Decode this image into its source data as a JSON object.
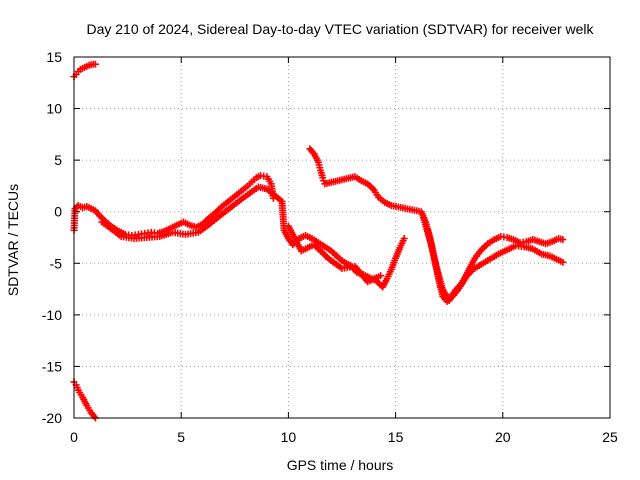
{
  "chart_data": {
    "type": "scatter",
    "title": "Day 210 of 2024, Sidereal Day-to-day VTEC variation (SDTVAR) for receiver welk",
    "xlabel": "GPS time / hours",
    "ylabel": "SDTVAR / TECUs",
    "xlim": [
      0,
      25
    ],
    "ylim": [
      -20,
      15
    ],
    "xticks": [
      0,
      5,
      10,
      15,
      20,
      25
    ],
    "yticks": [
      15,
      10,
      5,
      0,
      -5,
      -10,
      -15,
      -20
    ],
    "grid": true,
    "marker": "+",
    "color": "#ff0000",
    "series": [
      {
        "name": "sdtvar",
        "points": [
          [
            0.0,
            13.1
          ],
          [
            0.1,
            13.3
          ],
          [
            0.2,
            13.6
          ],
          [
            0.3,
            13.8
          ],
          [
            0.5,
            14.0
          ],
          [
            0.7,
            14.2
          ],
          [
            0.9,
            14.3
          ],
          [
            1.0,
            14.3
          ],
          [
            0.0,
            -16.5
          ],
          [
            0.1,
            -16.8
          ],
          [
            0.2,
            -17.3
          ],
          [
            0.4,
            -18.0
          ],
          [
            0.6,
            -18.8
          ],
          [
            0.8,
            -19.5
          ],
          [
            1.0,
            -20.0
          ],
          [
            0.0,
            -1.8
          ],
          [
            0.05,
            0.3
          ],
          [
            0.2,
            0.6
          ],
          [
            0.4,
            0.4
          ],
          [
            0.6,
            0.5
          ],
          [
            0.8,
            0.3
          ],
          [
            1.0,
            0.1
          ],
          [
            1.2,
            -0.4
          ],
          [
            1.5,
            -1.0
          ],
          [
            1.8,
            -1.5
          ],
          [
            2.1,
            -1.9
          ],
          [
            2.4,
            -2.2
          ],
          [
            2.7,
            -2.3
          ],
          [
            3.0,
            -2.2
          ],
          [
            3.3,
            -2.1
          ],
          [
            3.6,
            -2.0
          ],
          [
            3.9,
            -2.1
          ],
          [
            4.2,
            -1.9
          ],
          [
            4.5,
            -1.6
          ],
          [
            4.8,
            -1.3
          ],
          [
            5.1,
            -1.0
          ],
          [
            5.4,
            -1.3
          ],
          [
            5.7,
            -1.5
          ],
          [
            6.0,
            -1.2
          ],
          [
            6.3,
            -0.6
          ],
          [
            6.6,
            -0.1
          ],
          [
            6.9,
            0.5
          ],
          [
            7.2,
            1.0
          ],
          [
            7.5,
            1.5
          ],
          [
            7.8,
            2.0
          ],
          [
            8.1,
            2.5
          ],
          [
            8.3,
            2.9
          ],
          [
            8.5,
            3.3
          ],
          [
            8.7,
            3.5
          ],
          [
            9.0,
            3.4
          ],
          [
            9.2,
            2.7
          ],
          [
            9.3,
            1.3
          ],
          [
            1.3,
            -1.0
          ],
          [
            1.7,
            -1.6
          ],
          [
            2.2,
            -2.4
          ],
          [
            2.8,
            -2.6
          ],
          [
            3.4,
            -2.5
          ],
          [
            4.0,
            -2.4
          ],
          [
            4.6,
            -2.0
          ],
          [
            5.2,
            -2.2
          ],
          [
            5.8,
            -2.0
          ],
          [
            6.2,
            -1.4
          ],
          [
            6.8,
            -0.4
          ],
          [
            7.3,
            0.4
          ],
          [
            7.8,
            1.2
          ],
          [
            8.2,
            1.8
          ],
          [
            8.6,
            2.4
          ],
          [
            9.0,
            2.2
          ],
          [
            9.7,
            1.0
          ],
          [
            9.8,
            -1.8
          ],
          [
            10.0,
            -2.6
          ],
          [
            10.2,
            -3.2
          ],
          [
            10.5,
            -2.6
          ],
          [
            10.8,
            -2.3
          ],
          [
            11.1,
            -2.6
          ],
          [
            11.4,
            -3.0
          ],
          [
            11.7,
            -3.4
          ],
          [
            12.0,
            -3.8
          ],
          [
            12.3,
            -4.4
          ],
          [
            12.6,
            -4.9
          ],
          [
            12.9,
            -5.2
          ],
          [
            13.2,
            -5.9
          ],
          [
            13.5,
            -6.1
          ],
          [
            13.8,
            -6.4
          ],
          [
            14.1,
            -6.7
          ],
          [
            14.4,
            -7.3
          ],
          [
            14.6,
            -6.5
          ],
          [
            14.8,
            -5.6
          ],
          [
            15.0,
            -4.5
          ],
          [
            15.2,
            -3.5
          ],
          [
            15.4,
            -2.6
          ],
          [
            10.0,
            -1.4
          ],
          [
            10.6,
            -3.8
          ],
          [
            11.2,
            -3.2
          ],
          [
            11.9,
            -4.6
          ],
          [
            12.5,
            -5.5
          ],
          [
            13.1,
            -5.3
          ],
          [
            13.7,
            -6.8
          ],
          [
            14.3,
            -6.2
          ],
          [
            11.0,
            6.1
          ],
          [
            11.2,
            5.6
          ],
          [
            11.4,
            4.8
          ],
          [
            11.5,
            4.0
          ],
          [
            11.6,
            3.3
          ],
          [
            11.7,
            2.7
          ],
          [
            13.1,
            3.4
          ],
          [
            13.4,
            3.0
          ],
          [
            13.7,
            2.7
          ],
          [
            14.0,
            2.1
          ],
          [
            14.2,
            1.4
          ],
          [
            14.5,
            0.9
          ],
          [
            14.8,
            0.6
          ],
          [
            16.2,
            0.0
          ],
          [
            16.4,
            -1.0
          ],
          [
            16.6,
            -2.5
          ],
          [
            16.8,
            -4.5
          ],
          [
            17.0,
            -6.5
          ],
          [
            17.2,
            -8.2
          ],
          [
            17.4,
            -8.7
          ],
          [
            17.6,
            -8.2
          ],
          [
            17.8,
            -7.6
          ],
          [
            18.1,
            -6.9
          ],
          [
            18.4,
            -5.7
          ],
          [
            18.7,
            -4.5
          ],
          [
            19.0,
            -3.7
          ],
          [
            19.3,
            -3.1
          ],
          [
            19.6,
            -2.7
          ],
          [
            19.9,
            -2.4
          ],
          [
            20.2,
            -2.5
          ],
          [
            20.5,
            -2.7
          ],
          [
            20.8,
            -3.0
          ],
          [
            21.1,
            -2.9
          ],
          [
            21.4,
            -2.7
          ],
          [
            21.7,
            -2.9
          ],
          [
            22.0,
            -3.1
          ],
          [
            22.3,
            -2.9
          ],
          [
            22.6,
            -2.6
          ],
          [
            22.8,
            -2.7
          ],
          [
            16.3,
            -0.6
          ],
          [
            16.7,
            -3.4
          ],
          [
            17.1,
            -7.2
          ],
          [
            17.5,
            -8.6
          ],
          [
            17.9,
            -7.6
          ],
          [
            18.3,
            -6.3
          ],
          [
            18.6,
            -5.6
          ],
          [
            19.0,
            -5.1
          ],
          [
            19.4,
            -4.6
          ],
          [
            19.8,
            -4.1
          ],
          [
            20.2,
            -3.7
          ],
          [
            20.6,
            -3.3
          ],
          [
            21.0,
            -3.4
          ],
          [
            21.4,
            -3.6
          ],
          [
            21.8,
            -4.1
          ],
          [
            22.2,
            -4.3
          ],
          [
            22.5,
            -4.6
          ],
          [
            22.8,
            -4.9
          ],
          [
            16.5,
            -1.8
          ],
          [
            16.9,
            -5.3
          ],
          [
            17.3,
            -8.4
          ]
        ]
      }
    ]
  }
}
